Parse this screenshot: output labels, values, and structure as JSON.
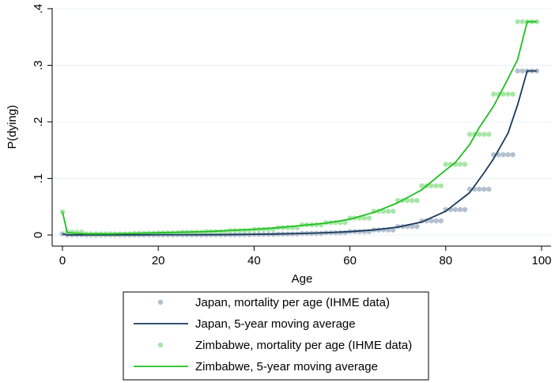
{
  "chart_data": {
    "type": "scatter",
    "xlabel": "Age",
    "ylabel": "P(dying)",
    "xlim": [
      0,
      100
    ],
    "ylim": [
      0,
      0.4
    ],
    "x_ticks": [
      {
        "value": 0,
        "label": "0"
      },
      {
        "value": 20,
        "label": "20"
      },
      {
        "value": 40,
        "label": "40"
      },
      {
        "value": 60,
        "label": "60"
      },
      {
        "value": 80,
        "label": "80"
      },
      {
        "value": 100,
        "label": "100"
      }
    ],
    "y_ticks": [
      {
        "value": 0,
        "label": "0"
      },
      {
        "value": 0.1,
        "label": ".1"
      },
      {
        "value": 0.2,
        "label": ".2"
      },
      {
        "value": 0.3,
        "label": ".3"
      },
      {
        "value": 0.4,
        "label": ".4"
      }
    ],
    "grid": "horizontal",
    "legend_position": "bottom",
    "series": [
      {
        "name": "Japan, mortality per age (IHME data)",
        "kind": "points",
        "color": "#b3c0cf",
        "x": [
          0,
          1,
          2,
          3,
          4,
          5,
          6,
          7,
          8,
          9,
          10,
          11,
          12,
          13,
          14,
          15,
          16,
          17,
          18,
          19,
          20,
          21,
          22,
          23,
          24,
          25,
          26,
          27,
          28,
          29,
          30,
          31,
          32,
          33,
          34,
          35,
          36,
          37,
          38,
          39,
          40,
          41,
          42,
          43,
          44,
          45,
          46,
          47,
          48,
          49,
          50,
          51,
          52,
          53,
          54,
          55,
          56,
          57,
          58,
          59,
          60,
          61,
          62,
          63,
          64,
          65,
          66,
          67,
          68,
          69,
          70,
          71,
          72,
          73,
          74,
          75,
          76,
          77,
          78,
          79,
          80,
          81,
          82,
          83,
          84,
          85,
          86,
          87,
          88,
          89,
          90,
          91,
          92,
          93,
          94,
          95,
          96,
          97,
          98,
          99
        ],
        "y": [
          0.002,
          0.0003,
          0.0003,
          0.0003,
          0.0003,
          0.0001,
          0.0001,
          0.0001,
          0.0001,
          0.0001,
          0.0001,
          0.0001,
          0.0001,
          0.0001,
          0.0001,
          0.0003,
          0.0003,
          0.0003,
          0.0003,
          0.0003,
          0.0005,
          0.0005,
          0.0005,
          0.0005,
          0.0005,
          0.0005,
          0.0005,
          0.0005,
          0.0005,
          0.0005,
          0.0006,
          0.0006,
          0.0006,
          0.0006,
          0.0006,
          0.0008,
          0.0008,
          0.0008,
          0.0008,
          0.0008,
          0.0012,
          0.0012,
          0.0012,
          0.0012,
          0.0012,
          0.0018,
          0.0018,
          0.0018,
          0.0018,
          0.0018,
          0.0028,
          0.0028,
          0.0028,
          0.0028,
          0.0028,
          0.004,
          0.004,
          0.004,
          0.004,
          0.004,
          0.006,
          0.006,
          0.006,
          0.006,
          0.006,
          0.009,
          0.009,
          0.009,
          0.009,
          0.009,
          0.015,
          0.015,
          0.015,
          0.015,
          0.015,
          0.025,
          0.025,
          0.025,
          0.025,
          0.025,
          0.045,
          0.045,
          0.045,
          0.045,
          0.045,
          0.081,
          0.081,
          0.081,
          0.081,
          0.081,
          0.142,
          0.142,
          0.142,
          0.142,
          0.142,
          0.29,
          0.29,
          0.29,
          0.29,
          0.29
        ]
      },
      {
        "name": "Japan, 5-year moving average",
        "kind": "line",
        "color": "#1a3a5c",
        "x": [
          0,
          1,
          5,
          10,
          15,
          20,
          25,
          30,
          35,
          40,
          45,
          50,
          55,
          60,
          65,
          70,
          75,
          80,
          85,
          88,
          90,
          93,
          95,
          97,
          99
        ],
        "y": [
          0.002,
          0.0002,
          0.0002,
          0.0002,
          0.0003,
          0.0005,
          0.0005,
          0.0006,
          0.0008,
          0.0012,
          0.0018,
          0.0028,
          0.004,
          0.006,
          0.009,
          0.014,
          0.023,
          0.042,
          0.075,
          0.11,
          0.135,
          0.18,
          0.23,
          0.29,
          0.29
        ]
      },
      {
        "name": "Zimbabwe, mortality per age (IHME data)",
        "kind": "points",
        "color": "#a8e6a8",
        "x": [
          0,
          1,
          2,
          3,
          4,
          5,
          6,
          7,
          8,
          9,
          10,
          11,
          12,
          13,
          14,
          15,
          16,
          17,
          18,
          19,
          20,
          21,
          22,
          23,
          24,
          25,
          26,
          27,
          28,
          29,
          30,
          31,
          32,
          33,
          34,
          35,
          36,
          37,
          38,
          39,
          40,
          41,
          42,
          43,
          44,
          45,
          46,
          47,
          48,
          49,
          50,
          51,
          52,
          53,
          54,
          55,
          56,
          57,
          58,
          59,
          60,
          61,
          62,
          63,
          64,
          65,
          66,
          67,
          68,
          69,
          70,
          71,
          72,
          73,
          74,
          75,
          76,
          77,
          78,
          79,
          80,
          81,
          82,
          83,
          84,
          85,
          86,
          87,
          88,
          89,
          90,
          91,
          92,
          93,
          94,
          95,
          96,
          97,
          98,
          99
        ],
        "y": [
          0.041,
          0.005,
          0.005,
          0.005,
          0.005,
          0.002,
          0.002,
          0.002,
          0.002,
          0.002,
          0.002,
          0.002,
          0.002,
          0.002,
          0.002,
          0.003,
          0.003,
          0.003,
          0.003,
          0.003,
          0.004,
          0.004,
          0.004,
          0.004,
          0.004,
          0.005,
          0.005,
          0.005,
          0.005,
          0.005,
          0.006,
          0.006,
          0.006,
          0.006,
          0.006,
          0.008,
          0.008,
          0.008,
          0.008,
          0.008,
          0.01,
          0.01,
          0.01,
          0.01,
          0.01,
          0.013,
          0.013,
          0.013,
          0.013,
          0.013,
          0.018,
          0.018,
          0.018,
          0.018,
          0.018,
          0.022,
          0.022,
          0.022,
          0.022,
          0.022,
          0.03,
          0.03,
          0.03,
          0.03,
          0.03,
          0.042,
          0.042,
          0.042,
          0.042,
          0.042,
          0.061,
          0.061,
          0.061,
          0.061,
          0.061,
          0.087,
          0.087,
          0.087,
          0.087,
          0.087,
          0.125,
          0.125,
          0.125,
          0.125,
          0.125,
          0.178,
          0.178,
          0.178,
          0.178,
          0.178,
          0.249,
          0.249,
          0.249,
          0.249,
          0.249,
          0.377,
          0.377,
          0.377,
          0.377,
          0.377
        ]
      },
      {
        "name": "Zimbabwe, 5-year moving average",
        "kind": "line",
        "color": "#1fbf1f",
        "x": [
          0,
          1,
          5,
          10,
          15,
          20,
          25,
          30,
          35,
          40,
          45,
          50,
          55,
          60,
          65,
          70,
          75,
          80,
          82,
          85,
          87,
          90,
          92,
          95,
          97,
          99
        ],
        "y": [
          0.041,
          0.004,
          0.002,
          0.002,
          0.003,
          0.004,
          0.005,
          0.006,
          0.008,
          0.01,
          0.013,
          0.017,
          0.021,
          0.028,
          0.04,
          0.057,
          0.08,
          0.115,
          0.128,
          0.16,
          0.19,
          0.228,
          0.26,
          0.31,
          0.377,
          0.377
        ]
      }
    ]
  }
}
